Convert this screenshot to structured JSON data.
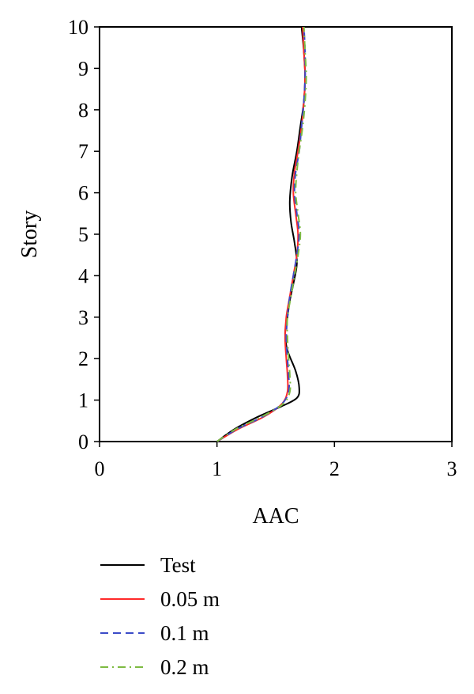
{
  "chart_data": {
    "type": "line",
    "xlabel": "AAC",
    "ylabel": "Story",
    "xlim": [
      0,
      3
    ],
    "ylim": [
      0,
      10
    ],
    "xticks": [
      "0",
      "1",
      "2",
      "3"
    ],
    "yticks": [
      "0",
      "1",
      "2",
      "3",
      "4",
      "5",
      "6",
      "7",
      "8",
      "9",
      "10"
    ],
    "grid": false,
    "legend_position": "bottom",
    "series": [
      {
        "name": "Test",
        "color": "#000000",
        "dash": "solid",
        "points": [
          [
            1.0,
            0
          ],
          [
            1.15,
            0.3
          ],
          [
            1.35,
            0.6
          ],
          [
            1.55,
            0.85
          ],
          [
            1.68,
            1.05
          ],
          [
            1.7,
            1.3
          ],
          [
            1.67,
            1.7
          ],
          [
            1.6,
            2.2
          ],
          [
            1.58,
            2.6
          ],
          [
            1.6,
            3.0
          ],
          [
            1.62,
            3.4
          ],
          [
            1.65,
            3.8
          ],
          [
            1.68,
            4.3
          ],
          [
            1.66,
            4.8
          ],
          [
            1.63,
            5.3
          ],
          [
            1.62,
            5.8
          ],
          [
            1.64,
            6.4
          ],
          [
            1.68,
            7.0
          ],
          [
            1.71,
            7.6
          ],
          [
            1.74,
            8.2
          ],
          [
            1.75,
            8.8
          ],
          [
            1.74,
            9.4
          ],
          [
            1.72,
            10.0
          ]
        ]
      },
      {
        "name": "0.05 m",
        "color": "#ff2a2a",
        "dash": "solid",
        "points": [
          [
            1.0,
            0
          ],
          [
            1.18,
            0.3
          ],
          [
            1.4,
            0.6
          ],
          [
            1.55,
            0.9
          ],
          [
            1.6,
            1.2
          ],
          [
            1.6,
            1.6
          ],
          [
            1.59,
            2.0
          ],
          [
            1.58,
            2.5
          ],
          [
            1.59,
            3.0
          ],
          [
            1.62,
            3.5
          ],
          [
            1.65,
            4.0
          ],
          [
            1.68,
            4.5
          ],
          [
            1.69,
            5.0
          ],
          [
            1.67,
            5.5
          ],
          [
            1.65,
            6.0
          ],
          [
            1.66,
            6.5
          ],
          [
            1.69,
            7.0
          ],
          [
            1.72,
            7.6
          ],
          [
            1.74,
            8.2
          ],
          [
            1.75,
            8.8
          ],
          [
            1.74,
            9.4
          ],
          [
            1.73,
            10.0
          ]
        ]
      },
      {
        "name": "0.1 m",
        "color": "#3b4bc8",
        "dash": "dashed",
        "points": [
          [
            1.0,
            0
          ],
          [
            1.17,
            0.3
          ],
          [
            1.39,
            0.6
          ],
          [
            1.55,
            0.9
          ],
          [
            1.61,
            1.2
          ],
          [
            1.61,
            1.6
          ],
          [
            1.6,
            2.0
          ],
          [
            1.59,
            2.5
          ],
          [
            1.6,
            3.0
          ],
          [
            1.62,
            3.5
          ],
          [
            1.65,
            4.0
          ],
          [
            1.68,
            4.5
          ],
          [
            1.7,
            5.0
          ],
          [
            1.68,
            5.5
          ],
          [
            1.66,
            6.0
          ],
          [
            1.67,
            6.5
          ],
          [
            1.7,
            7.0
          ],
          [
            1.72,
            7.6
          ],
          [
            1.74,
            8.2
          ],
          [
            1.75,
            8.8
          ],
          [
            1.75,
            9.4
          ],
          [
            1.74,
            10.0
          ]
        ]
      },
      {
        "name": "0.2 m",
        "color": "#7dbb42",
        "dash": "dashdot",
        "points": [
          [
            1.0,
            0
          ],
          [
            1.16,
            0.3
          ],
          [
            1.38,
            0.6
          ],
          [
            1.56,
            0.9
          ],
          [
            1.62,
            1.2
          ],
          [
            1.62,
            1.6
          ],
          [
            1.61,
            2.0
          ],
          [
            1.6,
            2.5
          ],
          [
            1.6,
            3.0
          ],
          [
            1.63,
            3.5
          ],
          [
            1.66,
            4.0
          ],
          [
            1.69,
            4.5
          ],
          [
            1.71,
            5.0
          ],
          [
            1.69,
            5.5
          ],
          [
            1.67,
            6.0
          ],
          [
            1.68,
            6.5
          ],
          [
            1.7,
            7.0
          ],
          [
            1.73,
            7.6
          ],
          [
            1.75,
            8.2
          ],
          [
            1.76,
            8.8
          ],
          [
            1.75,
            9.4
          ],
          [
            1.74,
            10.0
          ]
        ]
      }
    ]
  }
}
